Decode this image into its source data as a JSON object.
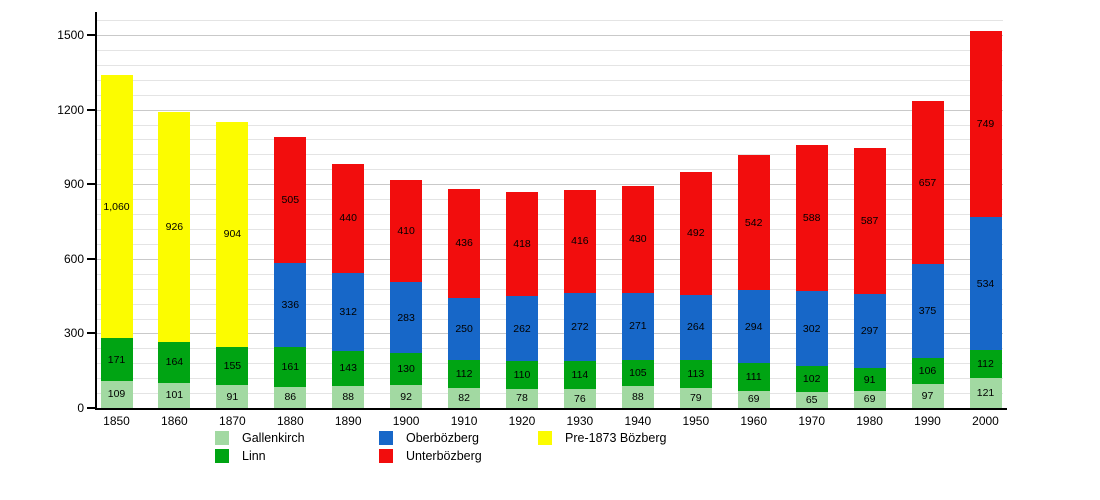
{
  "background_color": "#ffffff",
  "axis_color": "#000000",
  "grid_minor_color": "#e4e4e4",
  "grid_major_color": "#c9c9c9",
  "chart_data": {
    "type": "bar",
    "stacked": true,
    "title": "",
    "xlabel": "",
    "ylabel": "",
    "grid": true,
    "legend_position": "bottom",
    "ylim": [
      0,
      1590
    ],
    "y_ticks": [
      0,
      300,
      600,
      900,
      1200,
      1500
    ],
    "minor_step": 60,
    "categories": [
      "1850",
      "1860",
      "1870",
      "1880",
      "1890",
      "1900",
      "1910",
      "1920",
      "1930",
      "1940",
      "1950",
      "1960",
      "1970",
      "1980",
      "1990",
      "2000"
    ],
    "series": [
      {
        "name": "Gallenkirch",
        "color": "#a2d9a2",
        "values": [
          109,
          101,
          91,
          86,
          88,
          92,
          82,
          78,
          76,
          88,
          79,
          69,
          65,
          69,
          97,
          121
        ]
      },
      {
        "name": "Linn",
        "color": "#00a413",
        "values": [
          171,
          164,
          155,
          161,
          143,
          130,
          112,
          110,
          114,
          105,
          113,
          111,
          102,
          91,
          106,
          112
        ]
      },
      {
        "name": "Oberbözberg",
        "color": "#1767c8",
        "values": [
          0,
          0,
          0,
          336,
          312,
          283,
          250,
          262,
          272,
          271,
          264,
          294,
          302,
          297,
          375,
          534
        ]
      },
      {
        "name": "Unterbözberg",
        "color": "#f20d0d",
        "values": [
          0,
          0,
          0,
          505,
          440,
          410,
          436,
          418,
          416,
          430,
          492,
          542,
          588,
          587,
          657,
          749
        ]
      },
      {
        "name": "Pre-1873 Bözberg",
        "color": "#fcfc00",
        "values": [
          1060,
          926,
          904,
          0,
          0,
          0,
          0,
          0,
          0,
          0,
          0,
          0,
          0,
          0,
          0,
          0
        ]
      }
    ],
    "legend_columns": [
      [
        "Gallenkirch",
        "Linn"
      ],
      [
        "Oberbözberg",
        "Unterbözberg"
      ],
      [
        "Pre-1873 Bözberg"
      ]
    ]
  }
}
